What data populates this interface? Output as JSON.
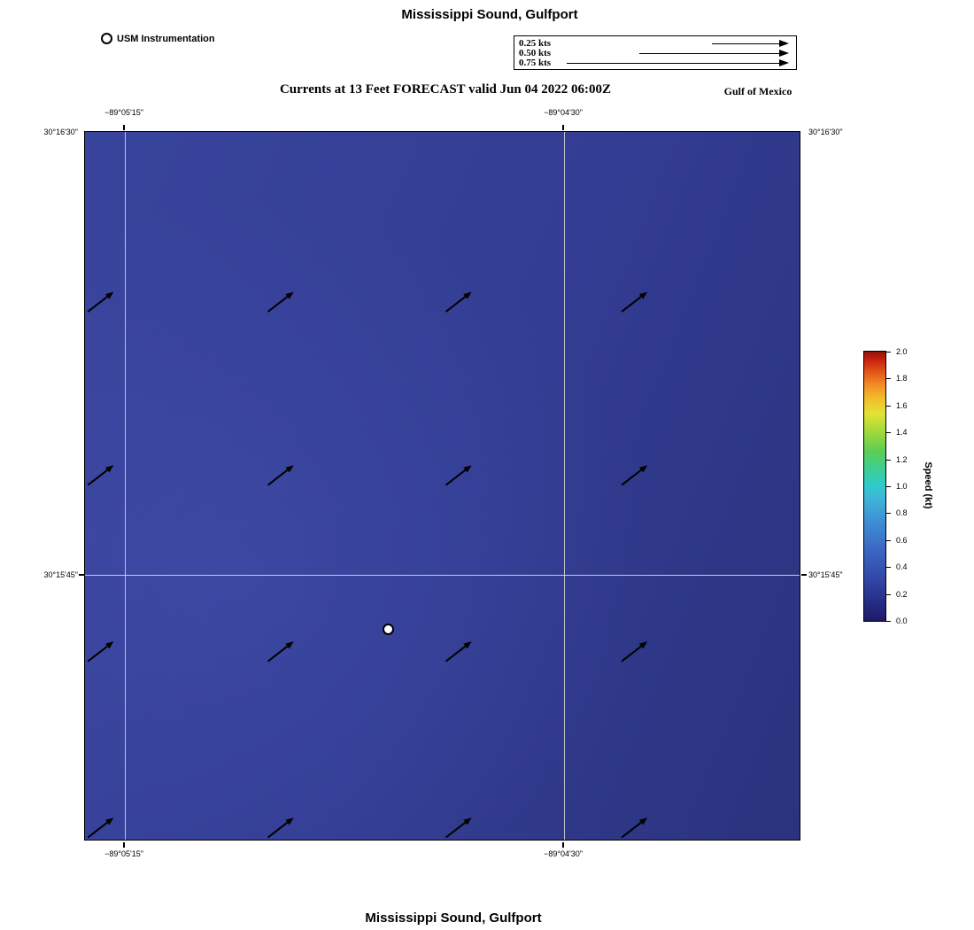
{
  "header": {
    "title": "Mississippi Sound, Gulfport",
    "subtitle": "Currents at 13 Feet FORECAST valid Jun 04 2022 06:00Z",
    "region_label": "Gulf of Mexico"
  },
  "footer": {
    "title": "Mississippi Sound, Gulfport"
  },
  "station_legend": {
    "label": "USM Instrumentation"
  },
  "scale_legend": {
    "items": [
      {
        "label": "0.25 kts"
      },
      {
        "label": "0.50 kts"
      },
      {
        "label": "0.75 kts"
      }
    ]
  },
  "axes": {
    "top": [
      {
        "label": "−89°05'15\""
      },
      {
        "label": "−89°04'30\""
      }
    ],
    "bottom": [
      {
        "label": "−89°05'15\""
      },
      {
        "label": "−89°04'30\""
      }
    ],
    "left": [
      {
        "label": "30°16'30\""
      },
      {
        "label": "30°15'45\""
      }
    ],
    "right": [
      {
        "label": "30°16'30\""
      },
      {
        "label": "30°15'45\""
      }
    ]
  },
  "colorbar": {
    "label": "Speed (kt)",
    "min": 0.0,
    "max": 2.0,
    "tick_interval": 0.2,
    "ticks": [
      "2.0",
      "1.8",
      "1.6",
      "1.4",
      "1.2",
      "1.0",
      "0.8",
      "0.6",
      "0.4",
      "0.2",
      "0.0"
    ]
  },
  "chart_data": {
    "type": "quiver_map",
    "title": "Mississippi Sound, Gulfport",
    "subtitle": "Currents at 13 Feet FORECAST valid Jun 04 2022 06:00Z",
    "region": "Gulf of Mexico",
    "depth_ft": 13,
    "valid_time": "Jun 04 2022 06:00Z",
    "x_ticks": [
      "−89°05'15\"",
      "−89°04'30\""
    ],
    "y_ticks": [
      "30°16'30\"",
      "30°15'45\""
    ],
    "colorbar": {
      "label": "Speed (kt)",
      "min": 0.0,
      "max": 2.0,
      "tick_interval": 0.2
    },
    "background_speed_kt": 0.25,
    "current": {
      "direction": "NE",
      "approx_speed_kt": 0.15
    },
    "station": {
      "name": "USM Instrumentation",
      "x_frac": 0.423,
      "y_frac": 0.7
    },
    "reference_arrows_kts": [
      0.25,
      0.5,
      0.75
    ],
    "quiver": {
      "col_fracs": [
        0.004,
        0.256,
        0.505,
        0.751
      ],
      "row_fracs": [
        0.254,
        0.499,
        0.748,
        0.997
      ],
      "dx": 22,
      "dy": -17
    }
  }
}
